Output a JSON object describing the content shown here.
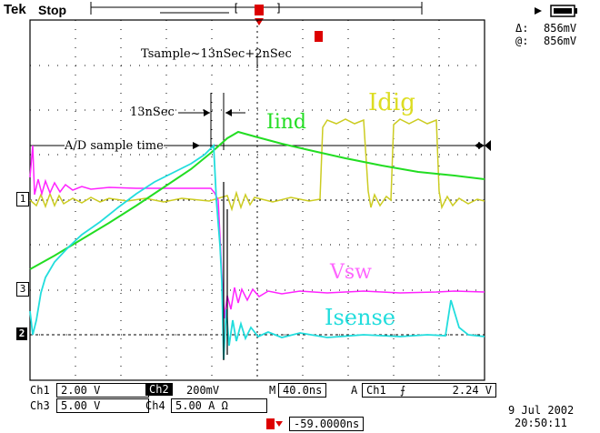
{
  "header": {
    "brand": "Tek",
    "status": "Stop",
    "trigger_position_marker": "[ T ]"
  },
  "measure": {
    "delta_label": "Δ:",
    "delta_value": "856mV",
    "at_label": "@:",
    "at_value": "856mV"
  },
  "annotations": {
    "tsample": "Tsample~13nSec+2nSec",
    "n13": "13nSec",
    "ad_sample": "A/D sample time",
    "iind": "Iind",
    "idig": "Idig",
    "vsw": "Vsw",
    "isense": "Isense"
  },
  "channel_markers": {
    "ch1": "1",
    "ch3": "3",
    "ch2": "2"
  },
  "settings": {
    "ch1_label": "Ch1",
    "ch1_scale": "2.00 V",
    "ch2_label": "Ch2",
    "ch2_scale": "200mV",
    "timebase_label": "M",
    "timebase": "40.0ns",
    "trig_label": "A",
    "trig_src": "Ch1",
    "trig_level": "2.24 V",
    "ch3_label": "Ch3",
    "ch3_scale": "5.00 V",
    "ch4_label": "Ch4",
    "ch4_scale": "5.00 A Ω",
    "trig_offset": "-59.0000ns"
  },
  "datetime": {
    "date": "9 Jul  2002",
    "time": "20:50:11"
  },
  "colors": {
    "iind": "#22dd22",
    "idig": "#cccc22",
    "vsw": "#ff22ff",
    "isense": "#22dddd",
    "trigger": "#dd0000"
  }
}
